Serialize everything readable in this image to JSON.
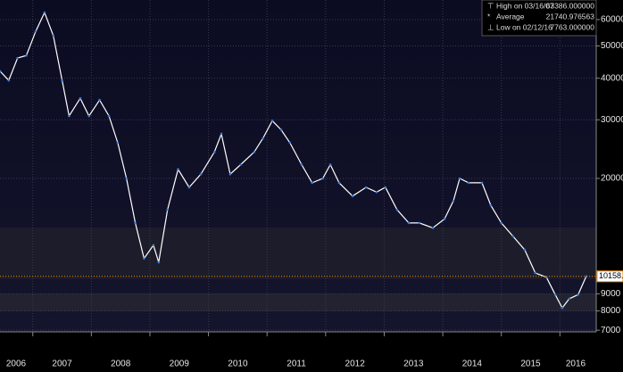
{
  "chart_data": {
    "type": "line",
    "log_scale": true,
    "grid": true,
    "color": "#ffffff",
    "x": [
      2006.44,
      2006.59,
      2006.74,
      2006.89,
      2007.05,
      2007.2,
      2007.35,
      2007.5,
      2007.62,
      2007.81,
      2007.96,
      2008.14,
      2008.3,
      2008.45,
      2008.6,
      2008.75,
      2008.9,
      2009.06,
      2009.15,
      2009.3,
      2009.48,
      2009.67,
      2009.87,
      2010.1,
      2010.22,
      2010.37,
      2010.55,
      2010.78,
      2010.93,
      2011.09,
      2011.24,
      2011.39,
      2011.59,
      2011.77,
      2011.95,
      2012.08,
      2012.23,
      2012.46,
      2012.69,
      2012.87,
      2013.02,
      2013.22,
      2013.42,
      2013.6,
      2013.83,
      2014.03,
      2014.18,
      2014.29,
      2014.44,
      2014.67,
      2014.82,
      2015.0,
      2015.2,
      2015.4,
      2015.58,
      2015.77,
      2015.92,
      2016.04,
      2016.16,
      2016.31,
      2016.45
    ],
    "values": [
      42000,
      39400,
      46000,
      46800,
      55300,
      63000,
      53700,
      39400,
      30800,
      34800,
      30800,
      34400,
      30800,
      25600,
      20000,
      14700,
      11500,
      12600,
      11200,
      16100,
      21300,
      18800,
      20600,
      24000,
      27200,
      20600,
      22000,
      24000,
      26400,
      29800,
      28000,
      25600,
      22000,
      19400,
      20000,
      22000,
      19400,
      17700,
      18800,
      18200,
      18800,
      16100,
      14700,
      14700,
      14200,
      15100,
      17100,
      20000,
      19400,
      19400,
      16600,
      14700,
      13400,
      12200,
      10400,
      10100,
      8950,
      8170,
      8700,
      8950,
      10158
    ],
    "xlim": [
      2006.44,
      2016.62
    ],
    "xticks": [
      2006,
      2007,
      2008,
      2009,
      2010,
      2011,
      2012,
      2013,
      2014,
      2015,
      2016
    ],
    "ylim": [
      6920,
      68700
    ],
    "yticks": [
      7000,
      8000,
      9000,
      20000,
      30000,
      40000,
      50000,
      60000
    ],
    "last_value": 10158,
    "last_value_label": "10158.",
    "stats": {
      "labels": [
        "High on 03/16/07",
        "Average",
        "Low on 02/12/16"
      ],
      "values": [
        63386,
        21740.976563,
        7763
      ],
      "value_labels": [
        "63386.000000",
        "21740.976563",
        "7763.000000"
      ]
    }
  }
}
